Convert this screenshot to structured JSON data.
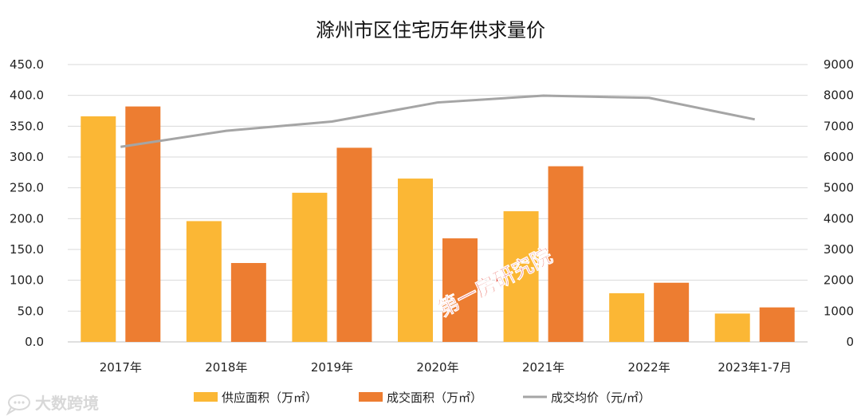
{
  "chart_data": {
    "type": "bar",
    "title": "滁州市区住宅历年供求量价",
    "categories": [
      "2017年",
      "2018年",
      "2019年",
      "2020年",
      "2021年",
      "2022年",
      "2023年1-7月"
    ],
    "series": [
      {
        "name": "供应面积（万㎡）",
        "type": "bar",
        "axis": "left",
        "color": "#fbb735",
        "values": [
          366,
          196,
          242,
          265,
          212,
          79,
          46
        ]
      },
      {
        "name": "成交面积（万㎡）",
        "type": "bar",
        "axis": "left",
        "color": "#ed7d31",
        "values": [
          382,
          128,
          315,
          168,
          285,
          96,
          56
        ]
      },
      {
        "name": "成交均价（元/㎡）",
        "type": "line",
        "axis": "right",
        "color": "#a5a5a5",
        "values": [
          6330,
          6850,
          7150,
          7770,
          7990,
          7920,
          7220
        ]
      }
    ],
    "y_left": {
      "min": 0,
      "max": 450,
      "step": 50,
      "ticks": [
        "0.0",
        "50.0",
        "100.0",
        "150.0",
        "200.0",
        "250.0",
        "300.0",
        "350.0",
        "400.0",
        "450.0"
      ]
    },
    "y_right": {
      "min": 0,
      "max": 9000,
      "step": 1000,
      "ticks": [
        "0",
        "1000",
        "2000",
        "3000",
        "4000",
        "5000",
        "6000",
        "7000",
        "8000",
        "9000"
      ]
    },
    "grid": true,
    "legend_position": "bottom"
  },
  "watermark": "第一房研究院",
  "logo": {
    "text": "大数跨境",
    "icon": "chat-bubble-logo-icon"
  }
}
